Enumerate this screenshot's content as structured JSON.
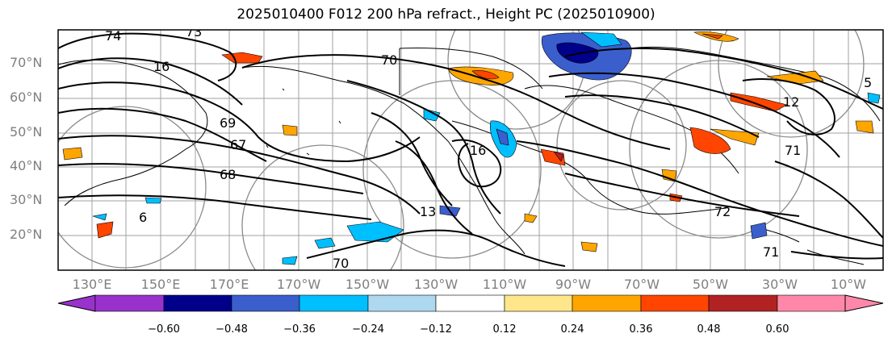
{
  "title": "2025010400 F012 200 hPa refract., Height PC (2025010900)",
  "map": {
    "lat_labels": [
      "70°N",
      "60°N",
      "50°N",
      "40°N",
      "30°N",
      "20°N"
    ],
    "lon_labels": [
      "130°E",
      "150°E",
      "170°E",
      "170°W",
      "150°W",
      "130°W",
      "110°W",
      "90°W",
      "70°W",
      "50°W",
      "30°W",
      "10°W"
    ],
    "contour_labels": [
      "74",
      "73",
      "16",
      "70",
      "69",
      "67",
      "68",
      "6",
      "13",
      "16",
      "70",
      "72",
      "71",
      "5",
      "12",
      "71"
    ]
  },
  "colorbar": {
    "ticks": [
      "−0.60",
      "−0.48",
      "−0.36",
      "−0.24",
      "−0.12",
      "0.12",
      "0.24",
      "0.36",
      "0.48",
      "0.60"
    ],
    "colors": [
      "#9932cc",
      "#00008b",
      "#3a5fcd",
      "#00bfff",
      "#add8f0",
      "#ffffff",
      "#ffe68a",
      "#ffa500",
      "#ff4500",
      "#b22222",
      "#ff88aa"
    ]
  }
}
